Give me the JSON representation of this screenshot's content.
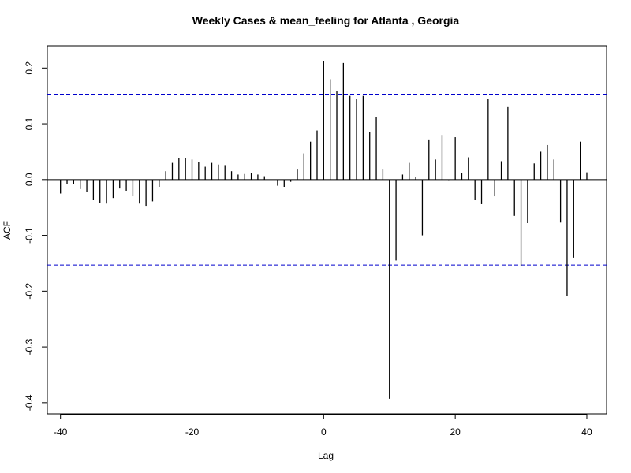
{
  "chart_data": {
    "type": "bar",
    "title": "Weekly Cases & mean_feeling for Atlanta , Georgia",
    "xlabel": "Lag",
    "ylabel": "ACF",
    "xlim": [
      -42,
      43
    ],
    "ylim": [
      -0.42,
      0.24
    ],
    "x_ticks": [
      -40,
      -20,
      0,
      20,
      40
    ],
    "x_tick_labels": [
      "-40",
      "-20",
      "0",
      "20",
      "40"
    ],
    "y_ticks": [
      -0.4,
      -0.3,
      -0.2,
      -0.1,
      0.0,
      0.1,
      0.2
    ],
    "y_tick_labels": [
      "-0.4",
      "-0.3",
      "-0.2",
      "-0.1",
      "0.0",
      "0.1",
      "0.2"
    ],
    "confidence_bound": 0.153,
    "confidence_color": "#0000cc",
    "bar_color": "#000000",
    "grid": false,
    "lags": [
      -40,
      -39,
      -38,
      -37,
      -36,
      -35,
      -34,
      -33,
      -32,
      -31,
      -30,
      -29,
      -28,
      -27,
      -26,
      -25,
      -24,
      -23,
      -22,
      -21,
      -20,
      -19,
      -18,
      -17,
      -16,
      -15,
      -14,
      -13,
      -12,
      -11,
      -10,
      -9,
      -8,
      -7,
      -6,
      -5,
      -4,
      -3,
      -2,
      -1,
      0,
      1,
      2,
      3,
      4,
      5,
      6,
      7,
      8,
      9,
      10,
      11,
      12,
      13,
      14,
      15,
      16,
      17,
      18,
      19,
      20,
      21,
      22,
      23,
      24,
      25,
      26,
      27,
      28,
      29,
      30,
      31,
      32,
      33,
      34,
      35,
      36,
      37,
      38,
      39,
      40
    ],
    "values": [
      -0.025,
      -0.008,
      -0.008,
      -0.017,
      -0.022,
      -0.037,
      -0.042,
      -0.043,
      -0.033,
      -0.016,
      -0.02,
      -0.03,
      -0.043,
      -0.047,
      -0.039,
      -0.013,
      0.015,
      0.03,
      0.038,
      0.038,
      0.036,
      0.032,
      0.023,
      0.03,
      0.027,
      0.026,
      0.015,
      0.009,
      0.01,
      0.012,
      0.009,
      0.006,
      0.0,
      -0.011,
      -0.013,
      -0.004,
      0.018,
      0.047,
      0.068,
      0.088,
      0.212,
      0.18,
      0.158,
      0.209,
      0.15,
      0.145,
      0.15,
      0.085,
      0.112,
      0.018,
      -0.393,
      -0.145,
      0.009,
      0.03,
      0.005,
      -0.1,
      0.072,
      0.036,
      0.08,
      -0.001,
      0.076,
      0.012,
      0.04,
      -0.037,
      -0.044,
      0.145,
      -0.03,
      0.033,
      0.13,
      -0.065,
      -0.155,
      -0.078,
      0.029,
      0.05,
      0.062,
      0.036,
      -0.077,
      -0.208,
      -0.14,
      0.068,
      0.013
    ]
  }
}
